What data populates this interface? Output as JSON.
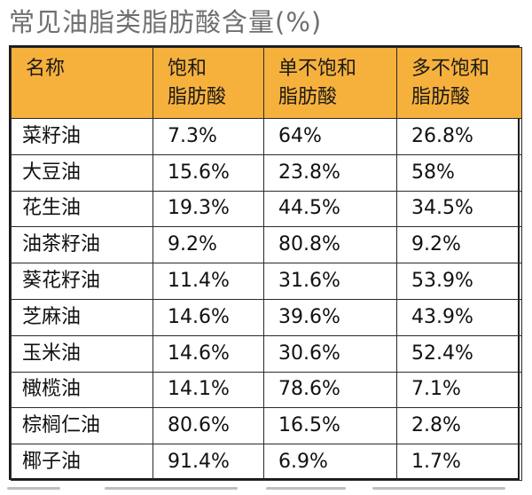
{
  "title": "常见油脂类脂肪酸含量(%)",
  "table": {
    "headers": [
      [
        "名称"
      ],
      [
        "饱和",
        "脂肪酸"
      ],
      [
        "单不饱和",
        "脂肪酸"
      ],
      [
        "多不饱和",
        "脂肪酸"
      ]
    ],
    "rows": [
      [
        "菜籽油",
        "7.3%",
        "64%",
        "26.8%"
      ],
      [
        "大豆油",
        "15.6%",
        "23.8%",
        "58%"
      ],
      [
        "花生油",
        "19.3%",
        "44.5%",
        "34.5%"
      ],
      [
        "油茶籽油",
        "9.2%",
        "80.8%",
        "9.2%"
      ],
      [
        "葵花籽油",
        "11.4%",
        "31.6%",
        "53.9%"
      ],
      [
        "芝麻油",
        "14.6%",
        "39.6%",
        "43.9%"
      ],
      [
        "玉米油",
        "14.6%",
        "30.6%",
        "52.4%"
      ],
      [
        "橄榄油",
        "14.1%",
        "78.6%",
        "7.1%"
      ],
      [
        "棕榈仁油",
        "80.6%",
        "16.5%",
        "2.8%"
      ],
      [
        "椰子油",
        "91.4%",
        "6.9%",
        "1.7%"
      ]
    ]
  },
  "colors": {
    "header_background": "#f6b13d",
    "title_text": "#6f6f6f",
    "border": "#2a2a2a"
  }
}
